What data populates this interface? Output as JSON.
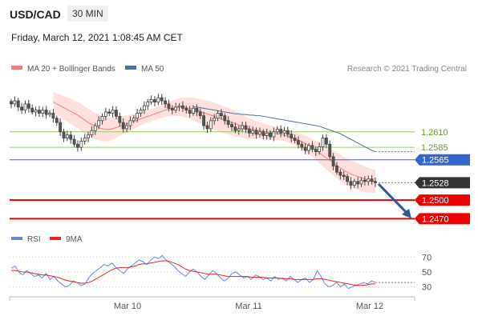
{
  "header": {
    "symbol": "USD/CAD",
    "timeframe": "30 MIN",
    "datetime": "Friday, March 12, 2021 1:08:45 AM CET"
  },
  "legend": {
    "ma20_label": "MA 20 + Bollinger Bands",
    "ma50_label": "MA 50",
    "copyright": "Research © 2021 Trading Central",
    "rsi_label": "RSI",
    "rsi_ma_label": "9MA"
  },
  "colors": {
    "ma20": "#f08080",
    "ma50": "#5070a0",
    "band_fill": "#fde0de",
    "candle_up": "#ffffff",
    "candle_down": "#555555",
    "resistance": "#99cc66",
    "pivot": "#3366cc",
    "support": "#ee0000",
    "current": "#333333",
    "rsi": "#6688dd",
    "rsi_ma": "#ee2222",
    "arrow": "#2a5a9a"
  },
  "chart_data": [
    {
      "type": "candlestick",
      "x_labels": [
        "Mar 10",
        "Mar 11",
        "Mar 12"
      ],
      "ylim": [
        1.2455,
        1.27
      ],
      "levels": [
        {
          "value": "1.2610",
          "kind": "resistance"
        },
        {
          "value": "1.2585",
          "kind": "resistance"
        },
        {
          "value": "1.2565",
          "kind": "pivot"
        },
        {
          "value": "1.2528",
          "kind": "current"
        },
        {
          "value": "1.2500",
          "kind": "support"
        },
        {
          "value": "1.2470",
          "kind": "support"
        }
      ],
      "close": [
        1.2655,
        1.266,
        1.265,
        1.2645,
        1.2655,
        1.2648,
        1.2642,
        1.2645,
        1.264,
        1.2645,
        1.2638,
        1.264,
        1.2632,
        1.2625,
        1.261,
        1.26,
        1.2605,
        1.2598,
        1.259,
        1.2585,
        1.2595,
        1.26,
        1.2605,
        1.2612,
        1.262,
        1.2628,
        1.2635,
        1.2642,
        1.264,
        1.2645,
        1.2635,
        1.2625,
        1.2615,
        1.262,
        1.2628,
        1.2632,
        1.264,
        1.2645,
        1.2652,
        1.2658,
        1.2662,
        1.2658,
        1.2665,
        1.266,
        1.2655,
        1.2648,
        1.2645,
        1.265,
        1.2652,
        1.2648,
        1.2645,
        1.264,
        1.2648,
        1.2642,
        1.2636,
        1.262,
        1.2615,
        1.2628,
        1.2632,
        1.264,
        1.2636,
        1.2628,
        1.2622,
        1.2618,
        1.2612,
        1.2615,
        1.262,
        1.2614,
        1.2608,
        1.2612,
        1.2606,
        1.261,
        1.2604,
        1.2608,
        1.2602,
        1.261,
        1.2614,
        1.2608,
        1.2612,
        1.2606,
        1.26,
        1.2596,
        1.259,
        1.2585,
        1.258,
        1.2588,
        1.2582,
        1.2578,
        1.2586,
        1.26,
        1.259,
        1.257,
        1.2555,
        1.2545,
        1.254,
        1.2538,
        1.253,
        1.2524,
        1.253,
        1.2526,
        1.2532,
        1.253,
        1.2534,
        1.253,
        1.2528
      ],
      "ma20": [
        1.2658,
        1.2655,
        1.2652,
        1.2649,
        1.2646,
        1.2643,
        1.264,
        1.2637,
        1.2633,
        1.2629,
        1.2625,
        1.2622,
        1.2619,
        1.2617,
        1.2615,
        1.2614,
        1.2614,
        1.2615,
        1.2617,
        1.2619,
        1.2621,
        1.2623,
        1.2625,
        1.2627,
        1.2629,
        1.2631,
        1.2633,
        1.2635,
        1.2637,
        1.2639,
        1.2641,
        1.2643,
        1.2645,
        1.2647,
        1.2648,
        1.2649,
        1.265,
        1.265,
        1.2649,
        1.2648,
        1.2647,
        1.2645,
        1.2643,
        1.2641,
        1.2639,
        1.2637,
        1.2635,
        1.2633,
        1.2631,
        1.2629,
        1.2627,
        1.2625,
        1.2623,
        1.2621,
        1.2619,
        1.2617,
        1.2615,
        1.2614,
        1.2613,
        1.2612,
        1.2611,
        1.261,
        1.2609,
        1.2608,
        1.2607,
        1.2606,
        1.2605,
        1.2603,
        1.2601,
        1.2599,
        1.2597,
        1.2594,
        1.2591,
        1.2588,
        1.2584,
        1.258,
        1.2576,
        1.2572,
        1.2568,
        1.2564,
        1.256,
        1.2556,
        1.2552,
        1.2548,
        1.2545,
        1.2542,
        1.254,
        1.2538,
        1.2536,
        1.2534,
        1.2532,
        1.2531,
        1.253
      ],
      "ma50": [
        1.265,
        1.265,
        1.2649,
        1.2648,
        1.2647,
        1.2646,
        1.2645,
        1.2644,
        1.2643,
        1.2642,
        1.2641,
        1.264,
        1.2639,
        1.2639,
        1.2638,
        1.2638,
        1.2637,
        1.2637,
        1.2636,
        1.2636,
        1.2635,
        1.2634,
        1.2633,
        1.2632,
        1.2631,
        1.263,
        1.2629,
        1.2628,
        1.2627,
        1.2626,
        1.2625,
        1.2624,
        1.2623,
        1.2622,
        1.2621,
        1.262,
        1.2619,
        1.2617,
        1.2615,
        1.2613,
        1.2611,
        1.2609,
        1.2607,
        1.2604,
        1.2601,
        1.2598,
        1.2595,
        1.2592,
        1.2589,
        1.2586,
        1.2583,
        1.258,
        1.2578
      ]
    },
    {
      "type": "line",
      "name": "RSI",
      "ylim": [
        20,
        80
      ],
      "y_ticks": [
        "70",
        "50",
        "30"
      ],
      "rsi": [
        55,
        58,
        50,
        46,
        52,
        48,
        44,
        46,
        42,
        48,
        40,
        44,
        38,
        34,
        30,
        32,
        38,
        36,
        32,
        34,
        42,
        48,
        52,
        56,
        60,
        58,
        62,
        56,
        52,
        48,
        54,
        58,
        62,
        66,
        64,
        60,
        66,
        70,
        68,
        72,
        66,
        62,
        58,
        52,
        48,
        44,
        50,
        54,
        50,
        44,
        40,
        46,
        52,
        48,
        42,
        38,
        42,
        48,
        50,
        46,
        42,
        44,
        40,
        46,
        44,
        40,
        42,
        38,
        44,
        40,
        42,
        38,
        44,
        40,
        36,
        40,
        42,
        36,
        40,
        52,
        44,
        34,
        30,
        32,
        36,
        30,
        34,
        28,
        30,
        32,
        34,
        36,
        34,
        38,
        36
      ],
      "rsi_ma": [
        52,
        52,
        51,
        50,
        50,
        49,
        48,
        47,
        46,
        46,
        45,
        44,
        43,
        41,
        39,
        38,
        37,
        36,
        35,
        35,
        36,
        38,
        41,
        44,
        47,
        50,
        53,
        55,
        56,
        56,
        56,
        57,
        58,
        60,
        61,
        61,
        62,
        63,
        64,
        65,
        65,
        64,
        62,
        60,
        57,
        54,
        52,
        51,
        50,
        49,
        48,
        47,
        47,
        47,
        46,
        45,
        44,
        44,
        44,
        44,
        44,
        44,
        43,
        43,
        43,
        43,
        42,
        42,
        42,
        42,
        41,
        41,
        41,
        40,
        40,
        40,
        40,
        40,
        40,
        41,
        41,
        40,
        39,
        38,
        37,
        36,
        35,
        34,
        33,
        32,
        32,
        32,
        33,
        34,
        34
      ]
    }
  ]
}
